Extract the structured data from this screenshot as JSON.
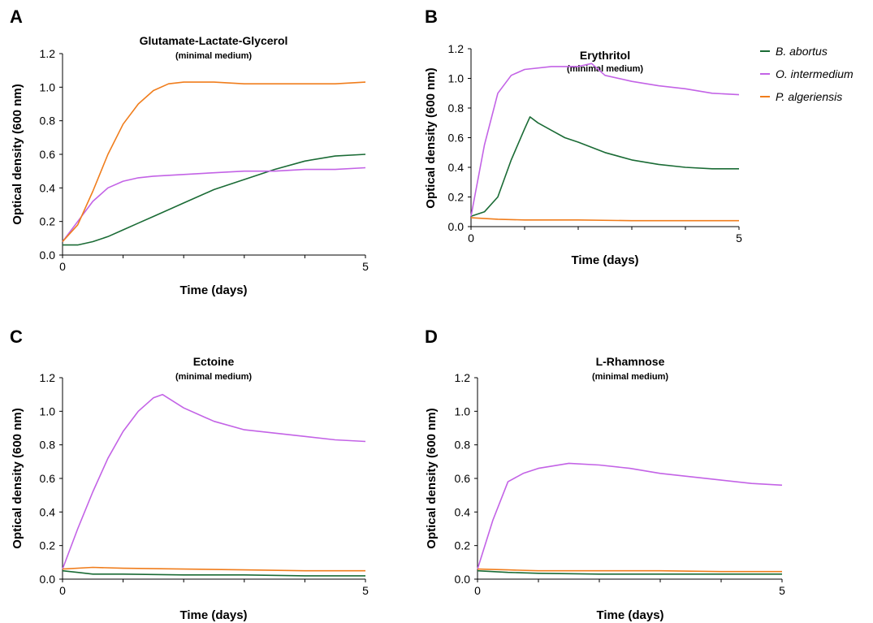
{
  "figure": {
    "legend": [
      {
        "name": "B. abortus",
        "color": "#1a6b35"
      },
      {
        "name": "O. intermedium",
        "color": "#c363e6"
      },
      {
        "name": "P. algeriensis",
        "color": "#f07d1c"
      }
    ]
  },
  "chart_data": [
    {
      "panel": "A",
      "type": "line",
      "title": "Glutamate-Lactate-Glycerol",
      "subtitle": "(minimal medium)",
      "xlabel": "Time (days)",
      "ylabel": "Optical density (600 nm)",
      "xlim": [
        0,
        5
      ],
      "ylim": [
        0,
        1.2
      ],
      "xticks": [
        "0",
        "5"
      ],
      "yticks": [
        "0.0",
        "0.2",
        "0.4",
        "0.6",
        "0.8",
        "1.0",
        "1.2"
      ],
      "series": [
        {
          "name": "B. abortus",
          "color": "#1a6b35",
          "x": [
            0,
            0.25,
            0.5,
            0.75,
            1,
            1.25,
            1.5,
            2,
            2.5,
            3,
            3.5,
            4,
            4.5,
            5
          ],
          "y": [
            0.06,
            0.06,
            0.08,
            0.11,
            0.15,
            0.19,
            0.23,
            0.31,
            0.39,
            0.45,
            0.51,
            0.56,
            0.59,
            0.6
          ]
        },
        {
          "name": "O. intermedium",
          "color": "#c363e6",
          "x": [
            0,
            0.25,
            0.5,
            0.75,
            1,
            1.25,
            1.5,
            2,
            2.5,
            3,
            3.5,
            4,
            4.5,
            5
          ],
          "y": [
            0.08,
            0.2,
            0.32,
            0.4,
            0.44,
            0.46,
            0.47,
            0.48,
            0.49,
            0.5,
            0.5,
            0.51,
            0.51,
            0.52
          ]
        },
        {
          "name": "P. algeriensis",
          "color": "#f07d1c",
          "x": [
            0,
            0.25,
            0.5,
            0.75,
            1,
            1.25,
            1.5,
            1.75,
            2,
            2.5,
            3,
            3.5,
            4,
            4.5,
            5
          ],
          "y": [
            0.08,
            0.18,
            0.38,
            0.6,
            0.78,
            0.9,
            0.98,
            1.02,
            1.03,
            1.03,
            1.02,
            1.02,
            1.02,
            1.02,
            1.03
          ]
        }
      ]
    },
    {
      "panel": "B",
      "type": "line",
      "title": "Erythritol",
      "subtitle": "(minimal medium)",
      "xlabel": "Time (days)",
      "ylabel": "Optical density (600 nm)",
      "xlim": [
        0,
        5
      ],
      "ylim": [
        0,
        1.2
      ],
      "xticks": [
        "0",
        "5"
      ],
      "yticks": [
        "0.0",
        "0.2",
        "0.4",
        "0.6",
        "0.8",
        "1.0",
        "1.2"
      ],
      "series": [
        {
          "name": "B. abortus",
          "color": "#1a6b35",
          "x": [
            0,
            0.25,
            0.5,
            0.75,
            1,
            1.1,
            1.25,
            1.5,
            1.75,
            2,
            2.5,
            3,
            3.5,
            4,
            4.5,
            5
          ],
          "y": [
            0.07,
            0.1,
            0.2,
            0.45,
            0.66,
            0.74,
            0.7,
            0.65,
            0.6,
            0.57,
            0.5,
            0.45,
            0.42,
            0.4,
            0.39,
            0.39
          ]
        },
        {
          "name": "O. intermedium",
          "color": "#c363e6",
          "x": [
            0,
            0.25,
            0.5,
            0.75,
            1,
            1.5,
            2,
            2.25,
            2.5,
            3,
            3.5,
            4,
            4.5,
            5
          ],
          "y": [
            0.07,
            0.55,
            0.9,
            1.02,
            1.06,
            1.08,
            1.08,
            1.1,
            1.02,
            0.98,
            0.95,
            0.93,
            0.9,
            0.89
          ]
        },
        {
          "name": "P. algeriensis",
          "color": "#f07d1c",
          "x": [
            0,
            0.5,
            1,
            2,
            3,
            4,
            5
          ],
          "y": [
            0.06,
            0.05,
            0.045,
            0.045,
            0.04,
            0.04,
            0.04
          ]
        }
      ]
    },
    {
      "panel": "C",
      "type": "line",
      "title": "Ectoine",
      "subtitle": "(minimal medium)",
      "xlabel": "Time (days)",
      "ylabel": "Optical density (600 nm)",
      "xlim": [
        0,
        5
      ],
      "ylim": [
        0,
        1.2
      ],
      "xticks": [
        "0",
        "5"
      ],
      "yticks": [
        "0.0",
        "0.2",
        "0.4",
        "0.6",
        "0.8",
        "1.0",
        "1.2"
      ],
      "series": [
        {
          "name": "B. abortus",
          "color": "#1a6b35",
          "x": [
            0,
            0.25,
            0.5,
            1,
            2,
            3,
            4,
            5
          ],
          "y": [
            0.05,
            0.04,
            0.03,
            0.03,
            0.025,
            0.025,
            0.02,
            0.02
          ]
        },
        {
          "name": "O. intermedium",
          "color": "#c363e6",
          "x": [
            0,
            0.25,
            0.5,
            0.75,
            1,
            1.25,
            1.5,
            1.65,
            2,
            2.5,
            3,
            3.5,
            4,
            4.5,
            5
          ],
          "y": [
            0.06,
            0.3,
            0.52,
            0.72,
            0.88,
            1.0,
            1.08,
            1.1,
            1.02,
            0.94,
            0.89,
            0.87,
            0.85,
            0.83,
            0.82
          ]
        },
        {
          "name": "P. algeriensis",
          "color": "#f07d1c",
          "x": [
            0,
            0.5,
            1,
            2,
            3,
            4,
            5
          ],
          "y": [
            0.06,
            0.07,
            0.065,
            0.06,
            0.055,
            0.05,
            0.05
          ]
        }
      ]
    },
    {
      "panel": "D",
      "type": "line",
      "title": "L-Rhamnose",
      "subtitle": "(minimal medium)",
      "xlabel": "Time (days)",
      "ylabel": "Optical density (600 nm)",
      "xlim": [
        0,
        5
      ],
      "ylim": [
        0,
        1.2
      ],
      "xticks": [
        "0",
        "5"
      ],
      "yticks": [
        "0.0",
        "0.2",
        "0.4",
        "0.6",
        "0.8",
        "1.0",
        "1.2"
      ],
      "series": [
        {
          "name": "B. abortus",
          "color": "#1a6b35",
          "x": [
            0,
            0.5,
            1,
            2,
            3,
            4,
            5
          ],
          "y": [
            0.05,
            0.04,
            0.035,
            0.03,
            0.03,
            0.03,
            0.03
          ]
        },
        {
          "name": "O. intermedium",
          "color": "#c363e6",
          "x": [
            0,
            0.25,
            0.5,
            0.75,
            1,
            1.5,
            2,
            2.5,
            3,
            3.5,
            4,
            4.5,
            5
          ],
          "y": [
            0.06,
            0.35,
            0.58,
            0.63,
            0.66,
            0.69,
            0.68,
            0.66,
            0.63,
            0.61,
            0.59,
            0.57,
            0.56
          ]
        },
        {
          "name": "P. algeriensis",
          "color": "#f07d1c",
          "x": [
            0,
            0.5,
            1,
            2,
            3,
            4,
            5
          ],
          "y": [
            0.06,
            0.055,
            0.05,
            0.05,
            0.05,
            0.045,
            0.045
          ]
        }
      ]
    }
  ]
}
